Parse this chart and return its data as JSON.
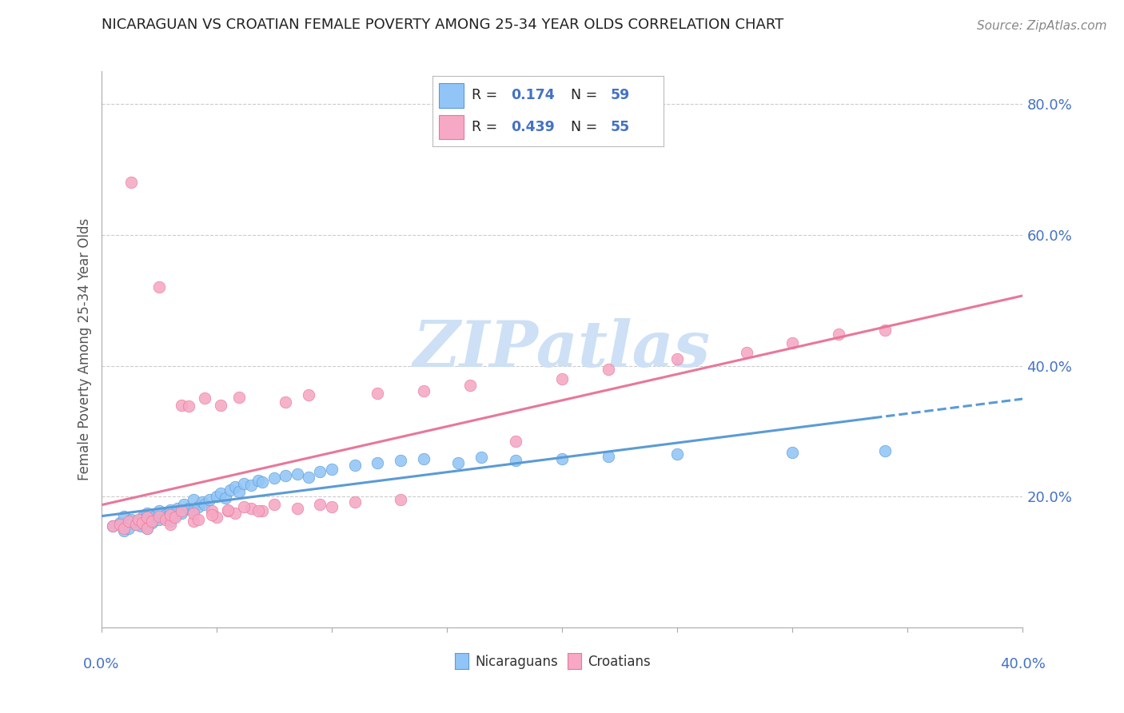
{
  "title": "NICARAGUAN VS CROATIAN FEMALE POVERTY AMONG 25-34 YEAR OLDS CORRELATION CHART",
  "source": "Source: ZipAtlas.com",
  "xmin": 0.0,
  "xmax": 0.4,
  "ymin": 0.0,
  "ymax": 0.85,
  "blue_R": 0.174,
  "blue_N": 59,
  "pink_R": 0.439,
  "pink_N": 55,
  "blue_color": "#92c5f7",
  "pink_color": "#f7a8c4",
  "blue_edge_color": "#5b9bd5",
  "pink_edge_color": "#e87799",
  "blue_line_color": "#5b9bd5",
  "pink_line_color": "#e87799",
  "watermark_color": "#cde0f5",
  "grid_color": "#cccccc",
  "tick_label_color": "#4472c4",
  "title_color": "#222222",
  "source_color": "#888888",
  "legend_label_blue": "Nicaraguans",
  "legend_label_pink": "Croatians",
  "ytick_vals": [
    0.0,
    0.2,
    0.4,
    0.6,
    0.8
  ],
  "ytick_labels": [
    "",
    "20.0%",
    "40.0%",
    "60.0%",
    "80.0%"
  ],
  "ylabel": "Female Poverty Among 25-34 Year Olds",
  "blue_scatter_x": [
    0.005,
    0.008,
    0.01,
    0.01,
    0.012,
    0.013,
    0.015,
    0.016,
    0.017,
    0.018,
    0.02,
    0.02,
    0.022,
    0.023,
    0.025,
    0.025,
    0.027,
    0.028,
    0.03,
    0.03,
    0.032,
    0.033,
    0.035,
    0.036,
    0.038,
    0.04,
    0.04,
    0.042,
    0.044,
    0.045,
    0.047,
    0.05,
    0.052,
    0.054,
    0.056,
    0.058,
    0.06,
    0.062,
    0.065,
    0.068,
    0.07,
    0.075,
    0.08,
    0.085,
    0.09,
    0.095,
    0.1,
    0.11,
    0.12,
    0.13,
    0.14,
    0.155,
    0.165,
    0.18,
    0.2,
    0.22,
    0.25,
    0.3,
    0.34
  ],
  "blue_scatter_y": [
    0.155,
    0.16,
    0.148,
    0.17,
    0.152,
    0.165,
    0.158,
    0.162,
    0.155,
    0.168,
    0.152,
    0.175,
    0.16,
    0.17,
    0.165,
    0.178,
    0.168,
    0.172,
    0.163,
    0.18,
    0.17,
    0.182,
    0.175,
    0.188,
    0.182,
    0.178,
    0.195,
    0.185,
    0.192,
    0.188,
    0.195,
    0.2,
    0.205,
    0.198,
    0.21,
    0.215,
    0.208,
    0.22,
    0.218,
    0.225,
    0.222,
    0.228,
    0.232,
    0.235,
    0.23,
    0.238,
    0.242,
    0.248,
    0.252,
    0.255,
    0.258,
    0.252,
    0.26,
    0.255,
    0.258,
    0.262,
    0.265,
    0.268,
    0.27
  ],
  "pink_scatter_x": [
    0.005,
    0.008,
    0.01,
    0.012,
    0.013,
    0.015,
    0.016,
    0.018,
    0.02,
    0.02,
    0.022,
    0.025,
    0.025,
    0.028,
    0.03,
    0.03,
    0.032,
    0.035,
    0.035,
    0.038,
    0.04,
    0.04,
    0.042,
    0.045,
    0.048,
    0.05,
    0.052,
    0.055,
    0.058,
    0.06,
    0.065,
    0.07,
    0.075,
    0.08,
    0.085,
    0.09,
    0.095,
    0.1,
    0.11,
    0.12,
    0.13,
    0.14,
    0.16,
    0.18,
    0.2,
    0.22,
    0.25,
    0.28,
    0.3,
    0.32,
    0.34,
    0.048,
    0.055,
    0.062,
    0.068
  ],
  "pink_scatter_y": [
    0.155,
    0.158,
    0.152,
    0.162,
    0.68,
    0.158,
    0.165,
    0.16,
    0.152,
    0.168,
    0.162,
    0.52,
    0.17,
    0.165,
    0.158,
    0.172,
    0.168,
    0.34,
    0.178,
    0.338,
    0.162,
    0.175,
    0.165,
    0.35,
    0.178,
    0.168,
    0.34,
    0.178,
    0.175,
    0.352,
    0.182,
    0.178,
    0.188,
    0.345,
    0.182,
    0.355,
    0.188,
    0.185,
    0.192,
    0.358,
    0.195,
    0.362,
    0.37,
    0.285,
    0.38,
    0.395,
    0.41,
    0.42,
    0.435,
    0.448,
    0.455,
    0.172,
    0.18,
    0.185,
    0.178
  ]
}
